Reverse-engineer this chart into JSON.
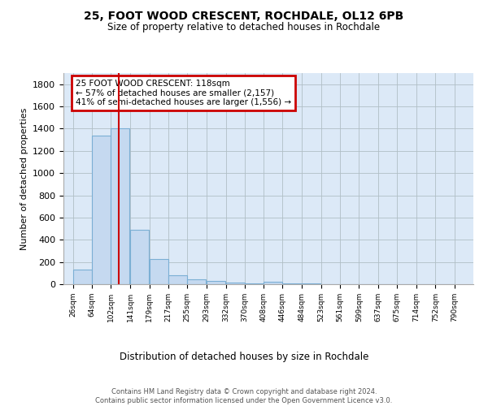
{
  "title1": "25, FOOT WOOD CRESCENT, ROCHDALE, OL12 6PB",
  "title2": "Size of property relative to detached houses in Rochdale",
  "xlabel": "Distribution of detached houses by size in Rochdale",
  "ylabel": "Number of detached properties",
  "footer": "Contains HM Land Registry data © Crown copyright and database right 2024.\nContains public sector information licensed under the Open Government Licence v3.0.",
  "bar_left_edges": [
    26,
    64,
    102,
    141,
    179,
    217,
    255,
    293,
    332,
    370,
    408,
    446,
    484,
    523,
    561,
    599,
    637,
    675,
    714,
    752
  ],
  "bar_widths": [
    38,
    38,
    38,
    38,
    38,
    38,
    38,
    38,
    38,
    38,
    38,
    38,
    38,
    38,
    38,
    38,
    38,
    38,
    38,
    38
  ],
  "bar_heights": [
    130,
    1340,
    1400,
    490,
    225,
    82,
    47,
    27,
    17,
    5,
    20,
    5,
    5,
    0,
    0,
    0,
    0,
    0,
    0,
    0
  ],
  "bar_color": "#c5d9f0",
  "bar_edgecolor": "#7bafd4",
  "background_color": "#dce9f7",
  "grid_color": "#b0bec5",
  "red_line_x": 118,
  "annotation_text": "25 FOOT WOOD CRESCENT: 118sqm\n← 57% of detached houses are smaller (2,157)\n41% of semi-detached houses are larger (1,556) →",
  "annotation_box_color": "#cc0000",
  "ylim": [
    0,
    1900
  ],
  "yticks": [
    0,
    200,
    400,
    600,
    800,
    1000,
    1200,
    1400,
    1600,
    1800
  ],
  "xtick_labels": [
    "26sqm",
    "64sqm",
    "102sqm",
    "141sqm",
    "179sqm",
    "217sqm",
    "255sqm",
    "293sqm",
    "332sqm",
    "370sqm",
    "408sqm",
    "446sqm",
    "484sqm",
    "523sqm",
    "561sqm",
    "599sqm",
    "637sqm",
    "675sqm",
    "714sqm",
    "752sqm",
    "790sqm"
  ],
  "xtick_positions": [
    26,
    64,
    102,
    141,
    179,
    217,
    255,
    293,
    332,
    370,
    408,
    446,
    484,
    523,
    561,
    599,
    637,
    675,
    714,
    752,
    790
  ],
  "xlim": [
    7,
    828
  ]
}
